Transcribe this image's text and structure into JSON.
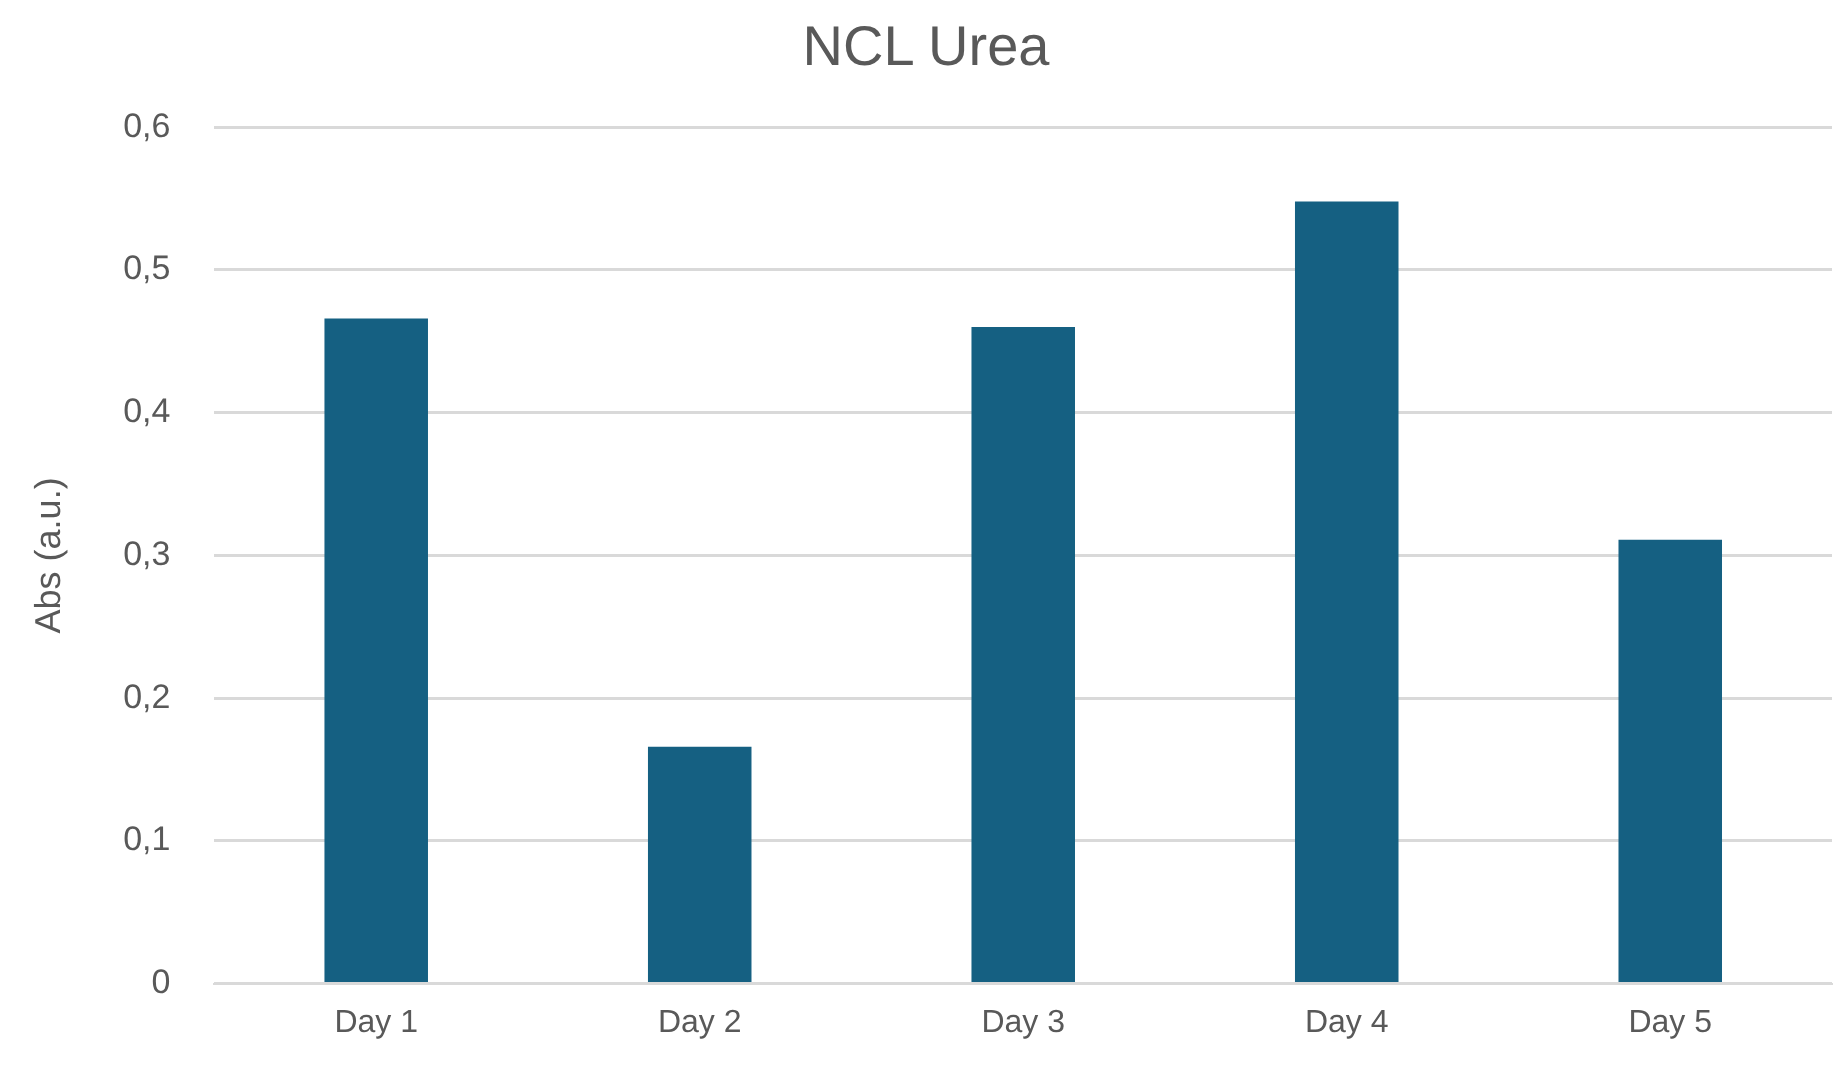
{
  "chart_data": {
    "type": "bar",
    "title": "NCL Urea",
    "ylabel": "Abs (a.u.)",
    "categories": [
      "Day 1",
      "Day 2",
      "Day 3",
      "Day 4",
      "Day 5"
    ],
    "values": [
      0.466,
      0.166,
      0.46,
      0.548,
      0.311
    ],
    "color": "#156082",
    "ylim": [
      0,
      0.6
    ],
    "yticks": [
      {
        "value": 0,
        "label": "0"
      },
      {
        "value": 0.1,
        "label": "0,1"
      },
      {
        "value": 0.2,
        "label": "0,2"
      },
      {
        "value": 0.3,
        "label": "0,3"
      },
      {
        "value": 0.4,
        "label": "0,4"
      },
      {
        "value": 0.5,
        "label": "0,5"
      },
      {
        "value": 0.6,
        "label": "0,6"
      }
    ],
    "grid": "y",
    "legend": false
  }
}
